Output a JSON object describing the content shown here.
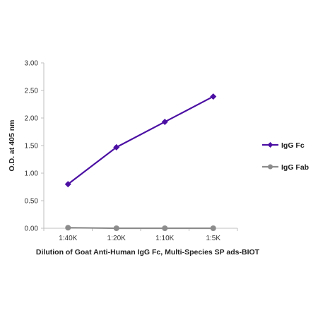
{
  "chart_data": {
    "type": "line",
    "categories": [
      "1:40K",
      "1:20K",
      "1:10K",
      "1:5K"
    ],
    "series": [
      {
        "name": "IgG Fc",
        "values": [
          0.8,
          1.47,
          1.93,
          2.39
        ],
        "color": "#4b0fa3",
        "marker": "diamond"
      },
      {
        "name": "IgG Fab",
        "values": [
          0.01,
          0.0,
          0.0,
          0.0
        ],
        "color": "#8c8c8c",
        "marker": "circle"
      }
    ],
    "xlabel": "Dilution of Goat Anti-Human IgG Fc, Multi-Species SP ads-BIOT",
    "ylabel": "O.D. at 405 nm",
    "ylim": [
      0,
      3
    ],
    "yticks": [
      "0.00",
      "0.50",
      "1.00",
      "1.50",
      "2.00",
      "2.50",
      "3.00"
    ],
    "ytick_values": [
      0,
      0.5,
      1,
      1.5,
      2,
      2.5,
      3
    ],
    "grid": false,
    "legend_position": "right"
  }
}
